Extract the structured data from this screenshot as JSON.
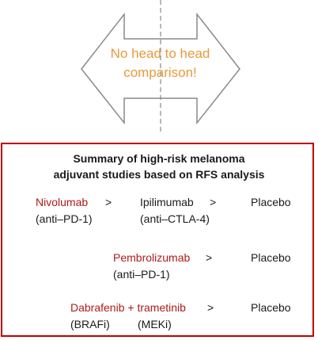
{
  "arrow": {
    "text_line1": "No head to head",
    "text_line2": "comparison!"
  },
  "summary": {
    "title_line1": "Summary of high-risk melanoma",
    "title_line2": "adjuvant studies based on RFS analysis",
    "rows": [
      {
        "drug1": "Nivolumab",
        "drug1_class": "(anti–PD-1)",
        "gt1": ">",
        "drug2": "Ipilimumab",
        "drug2_class": "(anti–CTLA-4)",
        "gt2": ">",
        "comparator": "Placebo"
      },
      {
        "drug1": "Pembrolizumab",
        "drug1_class": "(anti–PD-1)",
        "gt1": ">",
        "comparator": "Placebo"
      },
      {
        "drug1": "Dabrafenib + trametinib",
        "drug1_class_a": "(BRAFi)",
        "drug1_class_b": "(MEKi)",
        "gt1": ">",
        "comparator": "Placebo"
      }
    ]
  },
  "colors": {
    "accent_orange": "#e8993a",
    "drug_red": "#b01a1a",
    "box_border": "#c00000"
  }
}
